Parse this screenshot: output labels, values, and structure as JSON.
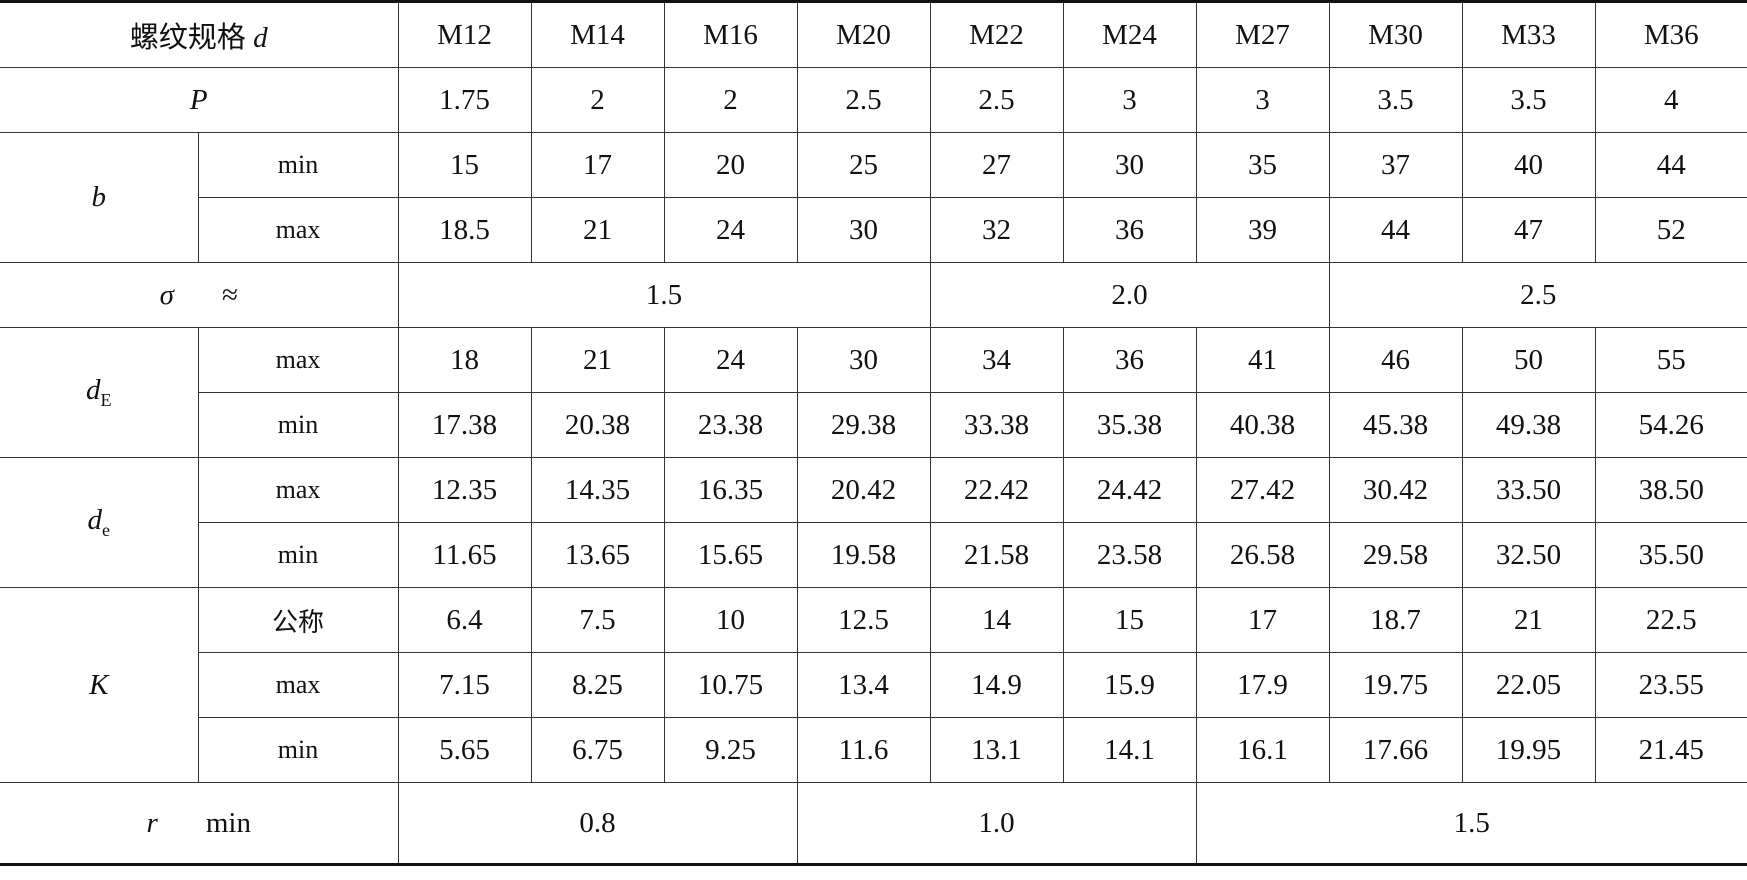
{
  "table": {
    "header": {
      "label": "螺纹规格",
      "symbol": "d",
      "sizes": [
        "M12",
        "M14",
        "M16",
        "M20",
        "M22",
        "M24",
        "M27",
        "M30",
        "M33",
        "M36"
      ]
    },
    "rows": [
      {
        "symbol": "P",
        "values": [
          "1.75",
          "2",
          "2",
          "2.5",
          "2.5",
          "3",
          "3",
          "3.5",
          "3.5",
          "4"
        ]
      },
      {
        "symbol": "b",
        "sub": [
          {
            "label": "min",
            "values": [
              "15",
              "17",
              "20",
              "25",
              "27",
              "30",
              "35",
              "37",
              "40",
              "44"
            ]
          },
          {
            "label": "max",
            "values": [
              "18.5",
              "21",
              "24",
              "30",
              "32",
              "36",
              "39",
              "44",
              "47",
              "52"
            ]
          }
        ]
      },
      {
        "symbol": "σ",
        "qualifier": "≈",
        "values": [
          "1.5",
          "2.0",
          "2.5"
        ]
      },
      {
        "symbol": "d",
        "subscript": "E",
        "sub": [
          {
            "label": "max",
            "values": [
              "18",
              "21",
              "24",
              "30",
              "34",
              "36",
              "41",
              "46",
              "50",
              "55"
            ]
          },
          {
            "label": "min",
            "values": [
              "17.38",
              "20.38",
              "23.38",
              "29.38",
              "33.38",
              "35.38",
              "40.38",
              "45.38",
              "49.38",
              "54.26"
            ]
          }
        ]
      },
      {
        "symbol": "d",
        "subscript": "e",
        "sub": [
          {
            "label": "max",
            "values": [
              "12.35",
              "14.35",
              "16.35",
              "20.42",
              "22.42",
              "24.42",
              "27.42",
              "30.42",
              "33.50",
              "38.50"
            ]
          },
          {
            "label": "min",
            "values": [
              "11.65",
              "13.65",
              "15.65",
              "19.58",
              "21.58",
              "23.58",
              "26.58",
              "29.58",
              "32.50",
              "35.50"
            ]
          }
        ]
      },
      {
        "symbol": "K",
        "sub": [
          {
            "label": "公称",
            "values": [
              "6.4",
              "7.5",
              "10",
              "12.5",
              "14",
              "15",
              "17",
              "18.7",
              "21",
              "22.5"
            ]
          },
          {
            "label": "max",
            "values": [
              "7.15",
              "8.25",
              "10.75",
              "13.4",
              "14.9",
              "15.9",
              "17.9",
              "19.75",
              "22.05",
              "23.55"
            ]
          },
          {
            "label": "min",
            "values": [
              "5.65",
              "6.75",
              "9.25",
              "11.6",
              "13.1",
              "14.1",
              "16.1",
              "17.66",
              "19.95",
              "21.45"
            ]
          }
        ]
      },
      {
        "symbol": "r",
        "qualifier": "min",
        "values": [
          "0.8",
          "1.0",
          "1.5"
        ]
      }
    ]
  }
}
